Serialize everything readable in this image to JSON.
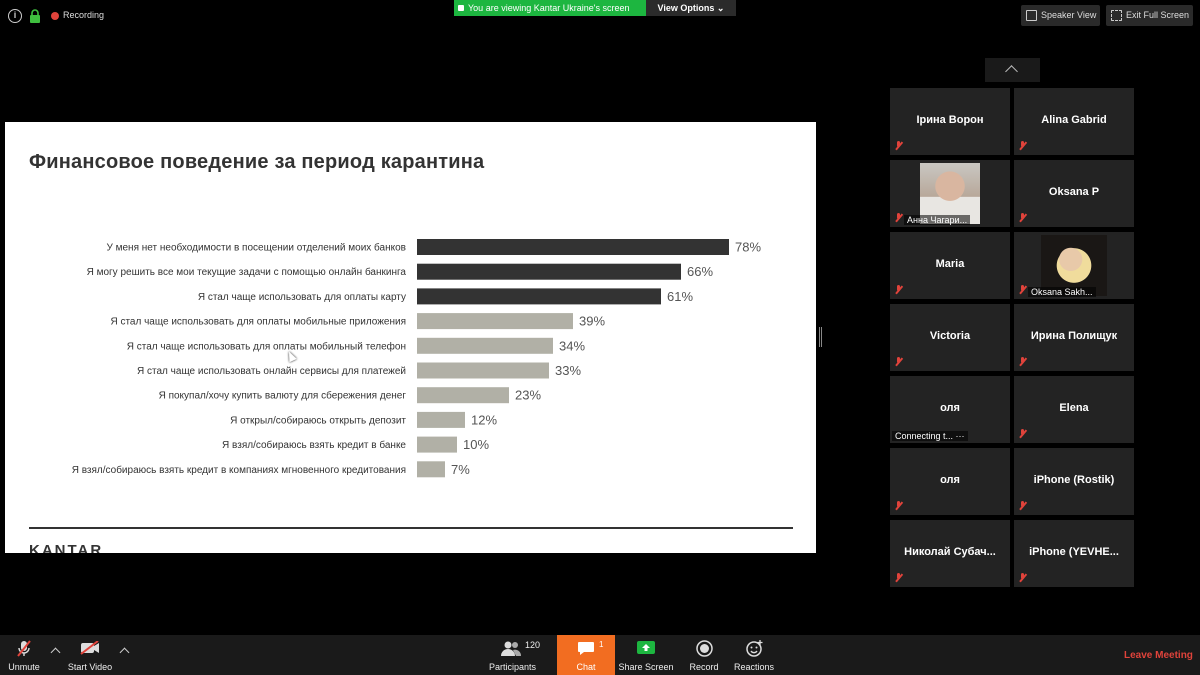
{
  "topbar": {
    "recording_label": "Recording",
    "viewing_banner": "You are viewing Kantar Ukraine's screen",
    "view_options_label": "View Options ⌄",
    "speaker_view_label": "Speaker View",
    "exit_fullscreen_label": "Exit Full Screen"
  },
  "slide": {
    "title": "Финансовое поведение за период карантина",
    "logo_text": "KANTAR"
  },
  "chart_data": {
    "type": "bar",
    "orientation": "horizontal",
    "categories": [
      "У меня нет необходимости в посещении отделений моих банков",
      "Я могу решить все мои текущие задачи с помощью онлайн банкинга",
      "Я стал чаще использовать для оплаты карту",
      "Я стал чаще использовать для оплаты мобильные приложения",
      "Я стал чаще использовать для оплаты мобильный телефон",
      "Я стал чаще использовать онлайн сервисы для платежей",
      "Я покупал/хочу купить валюту для сбережения денег",
      "Я открыл/собираюсь открыть депозит",
      "Я взял/собираюсь взять кредит в банке",
      "Я взял/собираюсь взять кредит в компаниях мгновенного кредитования"
    ],
    "values": [
      78,
      66,
      61,
      39,
      34,
      33,
      23,
      12,
      10,
      7
    ],
    "value_labels": [
      "78%",
      "66%",
      "61%",
      "39%",
      "34%",
      "33%",
      "23%",
      "12%",
      "10%",
      "7%"
    ],
    "colors": [
      "#333333",
      "#333333",
      "#333333",
      "#b1b0a6",
      "#b1b0a6",
      "#b1b0a6",
      "#b1b0a6",
      "#b1b0a6",
      "#b1b0a6",
      "#b1b0a6"
    ],
    "xlim": [
      0,
      100
    ],
    "unit": "%",
    "grid": false
  },
  "gallery": {
    "tiles": [
      {
        "name": "Ірина Ворон",
        "muted": true
      },
      {
        "name": "Alina Gabrid",
        "muted": true
      },
      {
        "name": "",
        "caption": "Анна Чагари...",
        "muted": true,
        "photo": true
      },
      {
        "name": "Oksana P",
        "muted": true
      },
      {
        "name": "Maria",
        "muted": true
      },
      {
        "name": "",
        "caption": "Oksana Sakh...",
        "muted": true,
        "photo": true
      },
      {
        "name": "Victoria",
        "muted": true
      },
      {
        "name": "Ирина Полищук",
        "muted": true
      },
      {
        "name": "оля",
        "caption": "Connecting t... ···",
        "muted": false
      },
      {
        "name": "Elena",
        "muted": true
      },
      {
        "name": "оля",
        "muted": true
      },
      {
        "name": "iPhone (Rostik)",
        "muted": true
      },
      {
        "name": "Николай  Субач...",
        "muted": true
      },
      {
        "name": "iPhone  (YEVHE...",
        "muted": true
      }
    ]
  },
  "toolbar": {
    "unmute_label": "Unmute",
    "start_video_label": "Start Video",
    "participants_label": "Participants",
    "participants_count": "120",
    "chat_label": "Chat",
    "chat_badge": "1",
    "share_screen_label": "Share Screen",
    "record_label": "Record",
    "reactions_label": "Reactions",
    "leave_label": "Leave Meeting",
    "accent_color": "#f26d21",
    "share_color": "#1db640",
    "leave_color": "#e0433b"
  }
}
